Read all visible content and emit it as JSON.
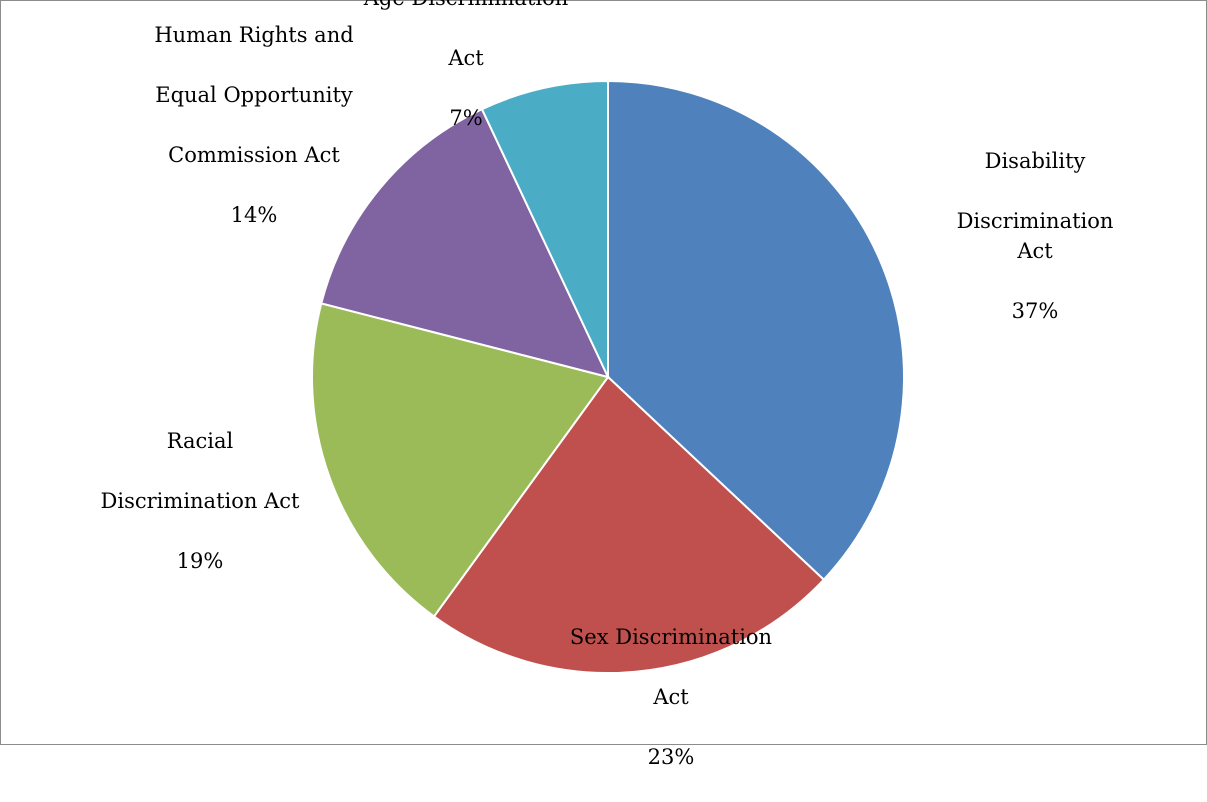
{
  "chart_data": {
    "type": "pie",
    "title": "",
    "start_angle_deg": 0,
    "direction": "clockwise",
    "slice_border_color": "#ffffff",
    "slices": [
      {
        "label_lines": [
          "Disability",
          "Discrimination Act"
        ],
        "value": 37,
        "percent_label": "37%",
        "color": "#4F81BD"
      },
      {
        "label_lines": [
          "Sex Discrimination",
          "Act"
        ],
        "value": 23,
        "percent_label": "23%",
        "color": "#C0504D"
      },
      {
        "label_lines": [
          "Racial",
          "Discrimination Act"
        ],
        "value": 19,
        "percent_label": "19%",
        "color": "#9BBB59"
      },
      {
        "label_lines": [
          "Human Rights and",
          "Equal Opportunity",
          "Commission Act"
        ],
        "value": 14,
        "percent_label": "14%",
        "color": "#8064A2"
      },
      {
        "label_lines": [
          "Age Discrimination",
          "Act"
        ],
        "value": 7,
        "percent_label": "7%",
        "color": "#4BACC6"
      }
    ]
  }
}
